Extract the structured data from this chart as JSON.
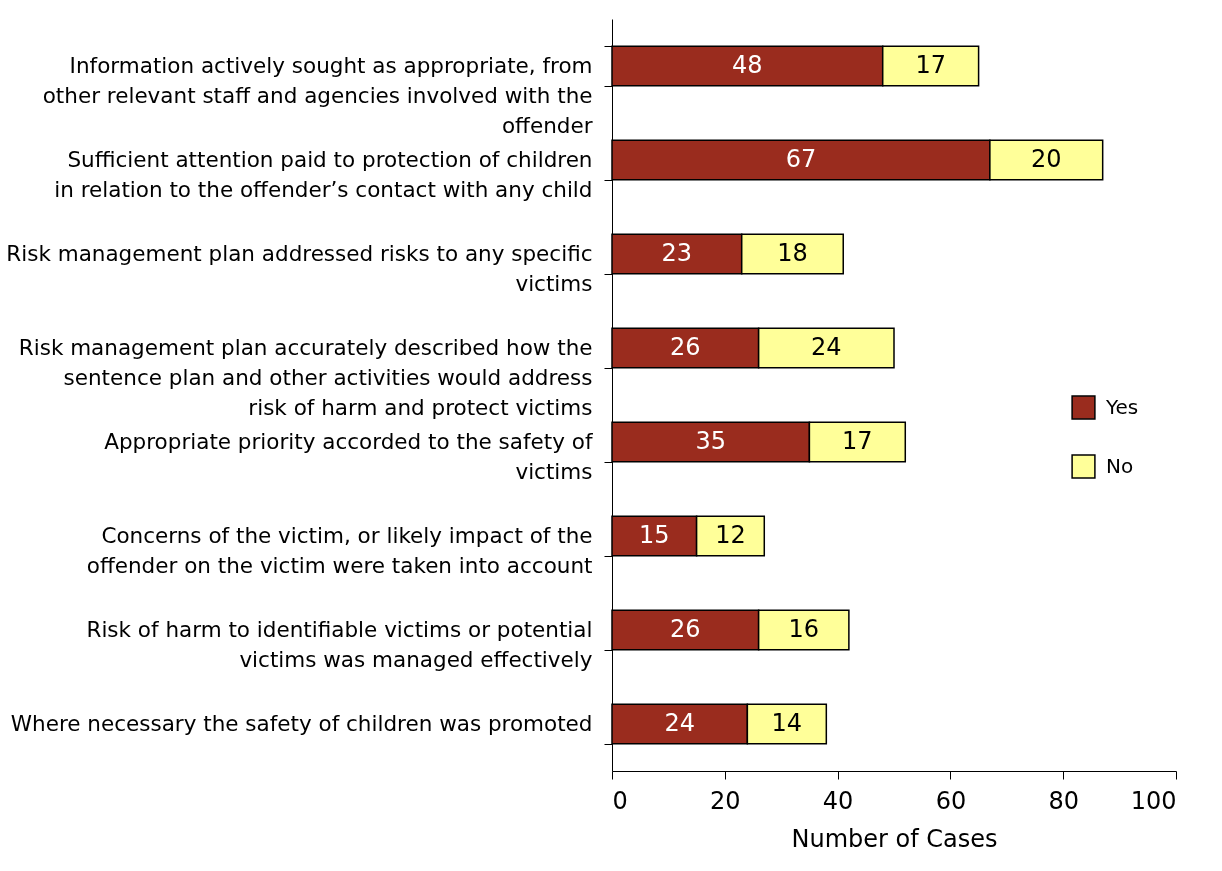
{
  "chart_data": {
    "type": "bar",
    "orientation": "horizontal",
    "stacked": true,
    "xlabel": "Number of Cases",
    "categories": [
      "Information actively sought as appropriate, from other relevant staff and agencies involved with the offender",
      "Sufficient attention paid to protection of children in relation to the offender’s contact with any child",
      "Risk management plan addressed risks to any specific victims",
      "Risk management plan accurately described how the sentence plan and other activities would address risk of harm and protect victims",
      "Appropriate priority accorded to the safety of victims",
      "Concerns of the victim, or likely impact of the offender on the victim were taken into account",
      "Risk of harm to identifiable victims or potential victims was managed effectively",
      "Where necessary the safety of children was promoted"
    ],
    "series": [
      {
        "name": "Yes",
        "color": "#9a2c1e",
        "values": [
          48,
          67,
          23,
          26,
          35,
          15,
          26,
          24
        ]
      },
      {
        "name": "No",
        "color": "#ffff99",
        "values": [
          17,
          20,
          18,
          24,
          17,
          12,
          16,
          14
        ]
      }
    ],
    "xlim": [
      0,
      100
    ],
    "xticks": [
      0,
      20,
      40,
      60,
      80,
      100
    ],
    "grid": false,
    "legend": "right",
    "data_labels": true
  }
}
